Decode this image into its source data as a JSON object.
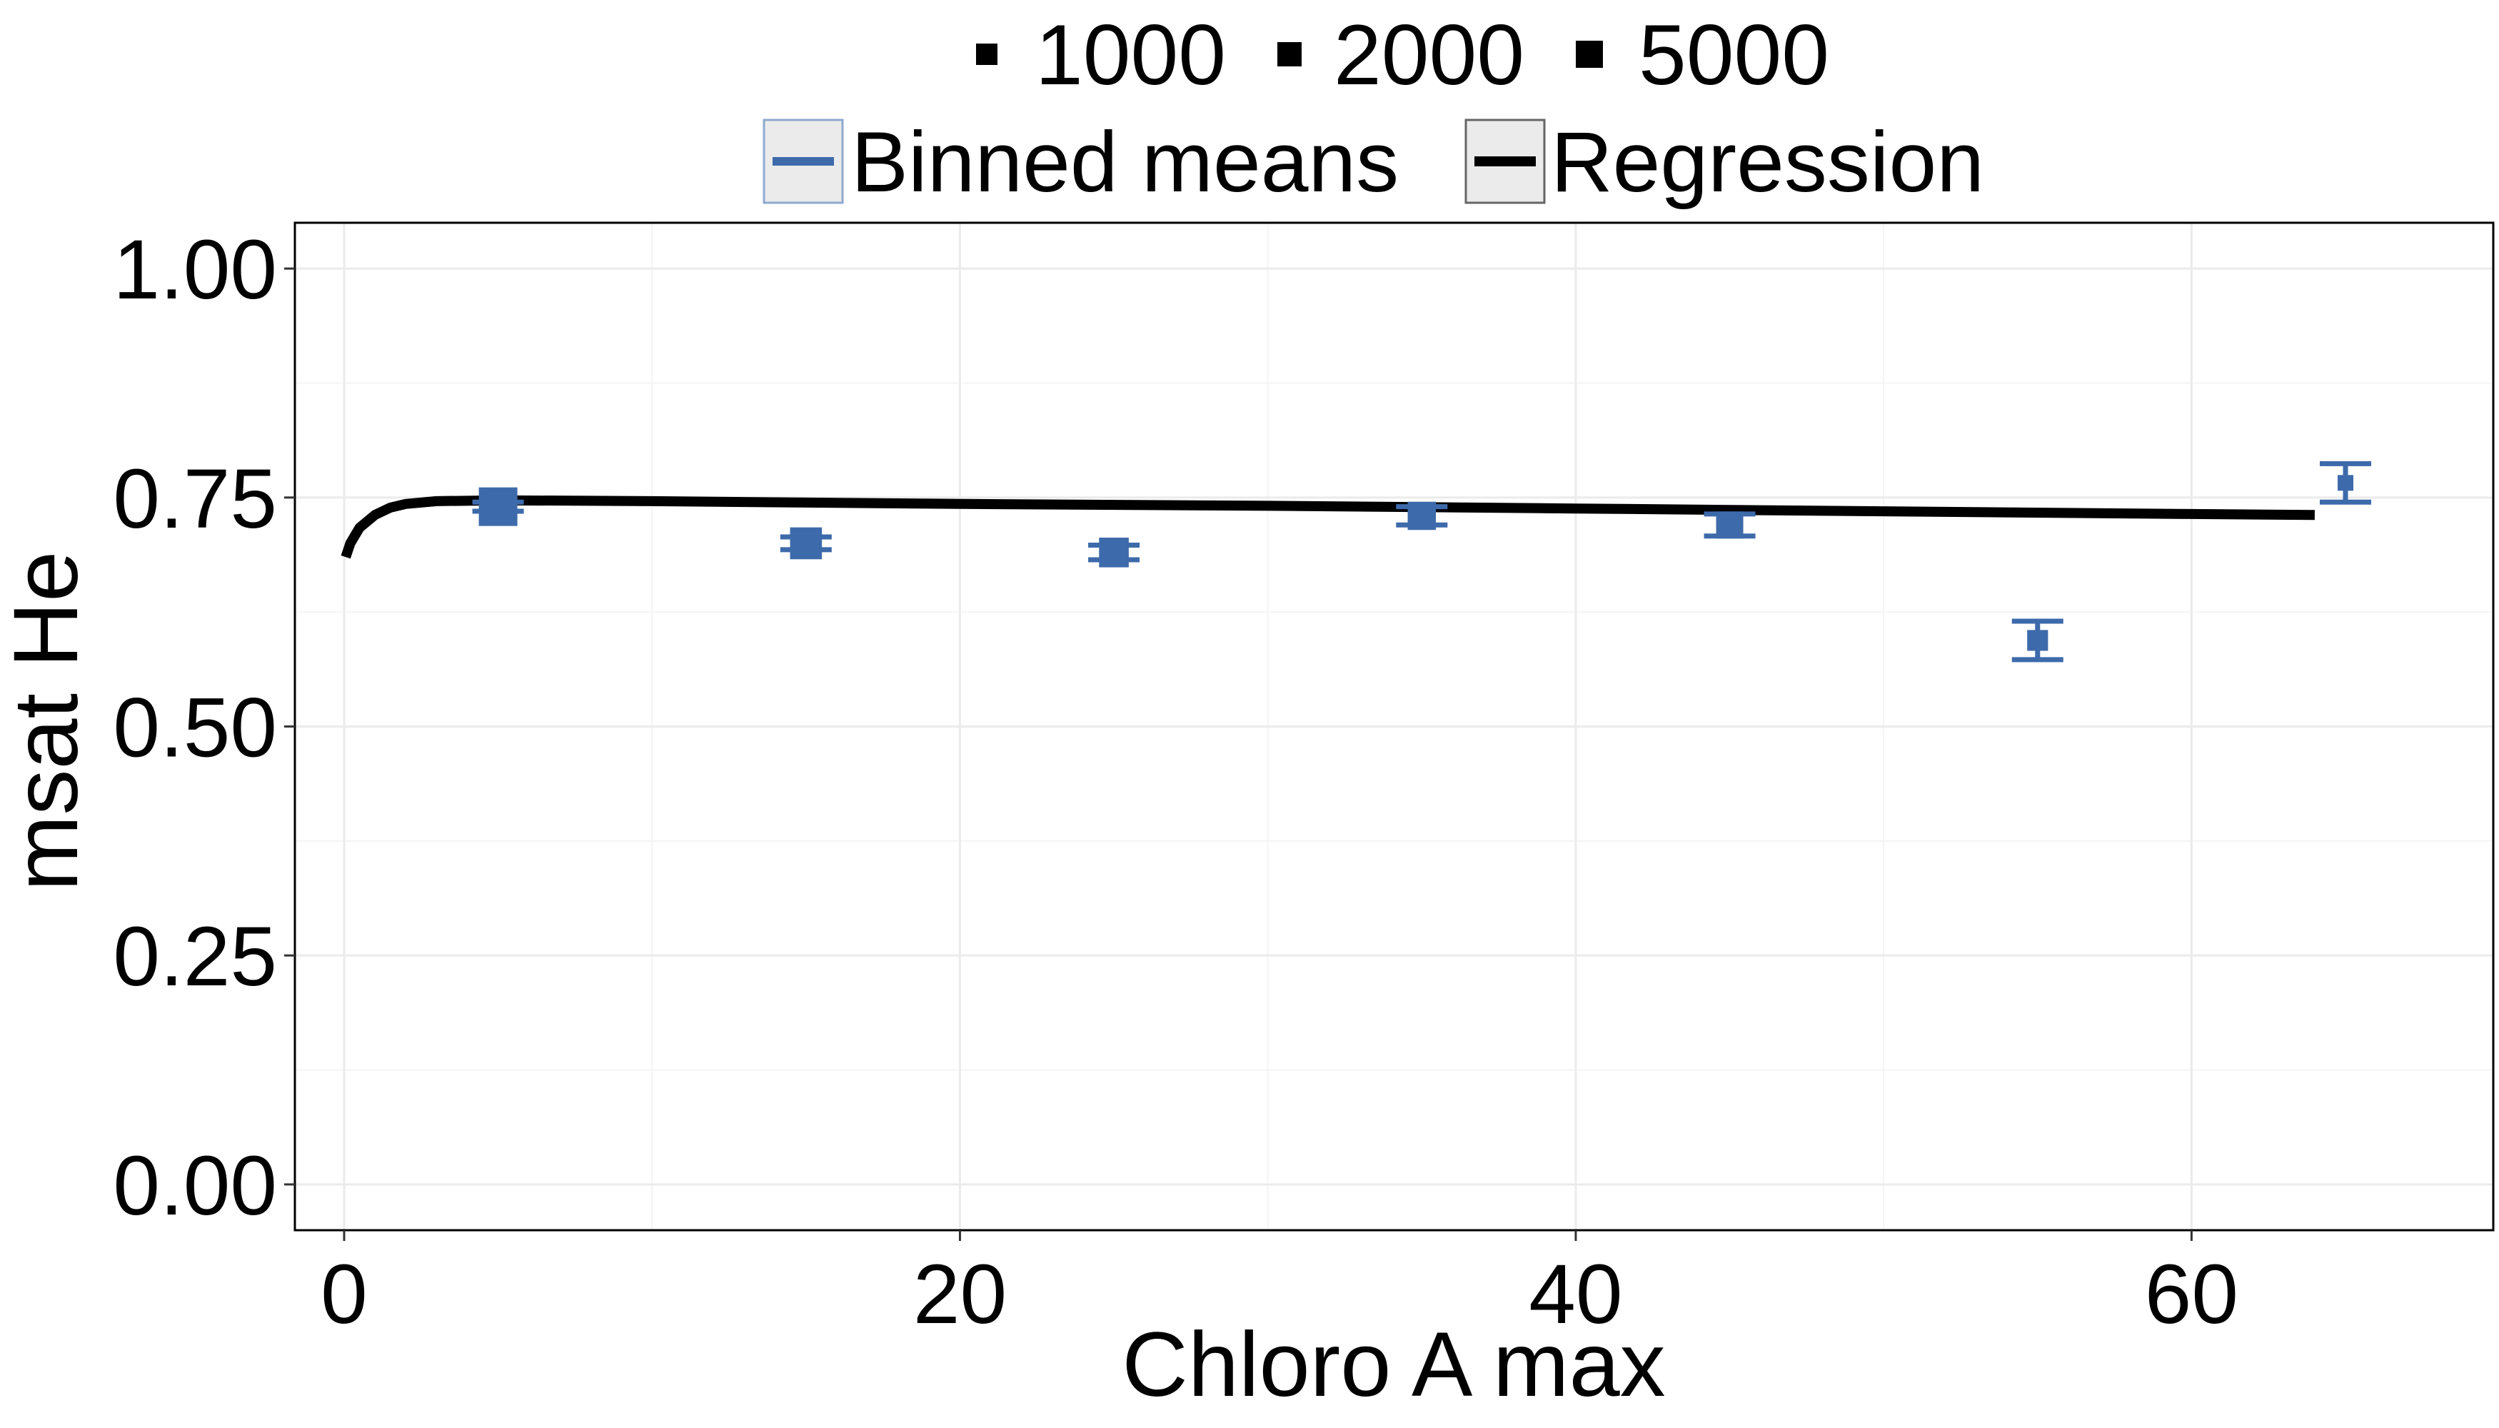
{
  "chart_data": {
    "type": "scatter",
    "title": "",
    "xlabel": "Chloro A max",
    "ylabel": "msat He",
    "xlim": [
      -1.6,
      69.8
    ],
    "ylim": [
      -0.05,
      1.05
    ],
    "x_ticks": [
      0,
      20,
      40,
      60
    ],
    "x_tick_labels": [
      "0",
      "20",
      "40",
      "60"
    ],
    "y_ticks": [
      0.0,
      0.25,
      0.5,
      0.75,
      1.0
    ],
    "y_tick_labels": [
      "0.00",
      "0.25",
      "0.50",
      "0.75",
      "1.00"
    ],
    "grid": true,
    "legend_placement": "top",
    "size_legend": {
      "entries": [
        {
          "label": "1000",
          "size": 1000
        },
        {
          "label": "2000",
          "size": 2000
        },
        {
          "label": "5000",
          "size": 5000
        }
      ]
    },
    "line_legend": {
      "entries": [
        {
          "label": "Binned means",
          "color": "#3d6aaa"
        },
        {
          "label": "Regression",
          "color": "#000000"
        }
      ]
    },
    "binned_means": {
      "name": "Binned means",
      "color": "#3d6aaa",
      "points": [
        {
          "x": 5,
          "y": 0.74,
          "ymin": 0.735,
          "ymax": 0.745,
          "n": 5000
        },
        {
          "x": 15,
          "y": 0.7,
          "ymin": 0.693,
          "ymax": 0.707,
          "n": 3000
        },
        {
          "x": 25,
          "y": 0.69,
          "ymin": 0.682,
          "ymax": 0.698,
          "n": 2500
        },
        {
          "x": 35,
          "y": 0.73,
          "ymin": 0.72,
          "ymax": 0.74,
          "n": 2200
        },
        {
          "x": 45,
          "y": 0.72,
          "ymin": 0.708,
          "ymax": 0.732,
          "n": 2000
        },
        {
          "x": 55,
          "y": 0.594,
          "ymin": 0.573,
          "ymax": 0.615,
          "n": 1200
        },
        {
          "x": 65,
          "y": 0.766,
          "ymin": 0.745,
          "ymax": 0.787,
          "n": 1000
        }
      ]
    },
    "regression": {
      "name": "Regression",
      "color": "#000000",
      "x": [
        0.05,
        0.2,
        0.5,
        1,
        1.5,
        2,
        3,
        5,
        10,
        20,
        30,
        40,
        50,
        60,
        64
      ],
      "y": [
        0.685,
        0.7,
        0.717,
        0.731,
        0.739,
        0.743,
        0.746,
        0.747,
        0.746,
        0.743,
        0.741,
        0.738,
        0.735,
        0.732,
        0.731
      ]
    }
  }
}
